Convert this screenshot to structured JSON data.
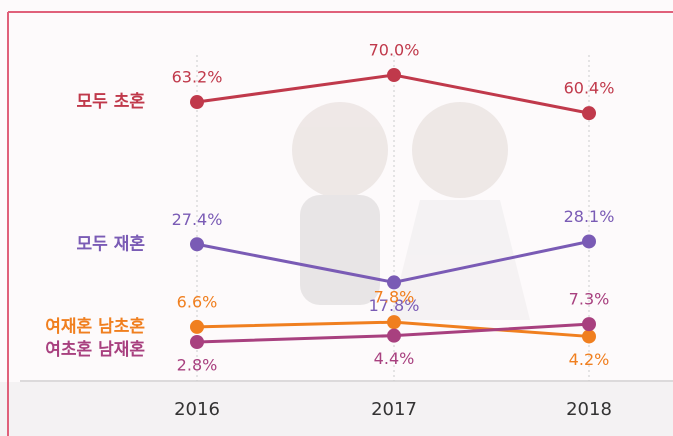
{
  "chart_data": {
    "type": "line",
    "categories": [
      "2016",
      "2017",
      "2018"
    ],
    "series": [
      {
        "name": "모두 초혼",
        "color": "#c0394b",
        "values": [
          63.2,
          70.0,
          60.4
        ],
        "value_labels": [
          "63.2%",
          "70.0%",
          "60.4%"
        ]
      },
      {
        "name": "모두 재혼",
        "color": "#7a5bb5",
        "values": [
          27.4,
          17.8,
          28.1
        ],
        "value_labels": [
          "27.4%",
          "17.8%",
          "28.1%"
        ]
      },
      {
        "name": "여재혼 남초혼",
        "color": "#f07f1f",
        "values": [
          6.6,
          7.8,
          4.2
        ],
        "value_labels": [
          "6.6%",
          "7.8%",
          "4.2%"
        ]
      },
      {
        "name": "여초혼 남재혼",
        "color": "#a8407f",
        "values": [
          2.8,
          4.4,
          7.3
        ],
        "value_labels": [
          "2.8%",
          "4.4%",
          "7.3%"
        ]
      }
    ]
  }
}
